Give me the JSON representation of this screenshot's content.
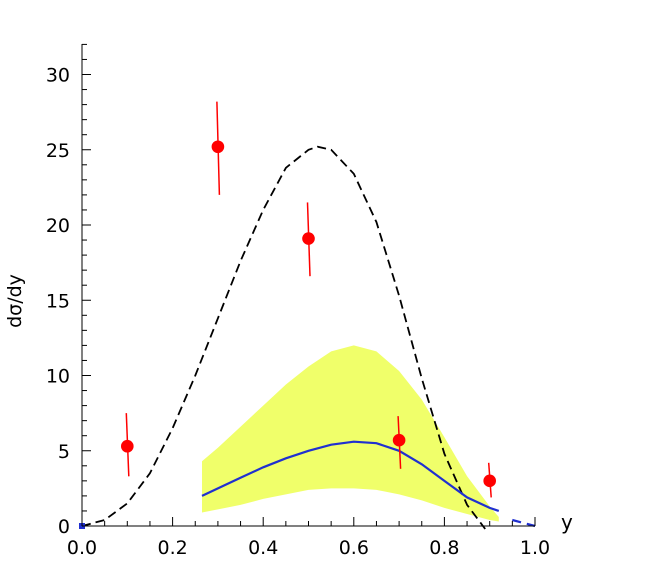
{
  "chart_data": {
    "type": "line",
    "xlabel": "y",
    "ylabel": "dσ/dy",
    "xlim": [
      0.0,
      1.0
    ],
    "ylim": [
      0,
      32
    ],
    "grid": false,
    "x_ticks": [
      "0.0",
      "0.2",
      "0.4",
      "0.6",
      "0.8",
      "1.0"
    ],
    "y_ticks": [
      "0",
      "5",
      "10",
      "15",
      "20",
      "25",
      "30"
    ],
    "points": {
      "color": "#ff0000",
      "x": [
        0.1,
        0.3,
        0.5,
        0.7,
        0.9
      ],
      "y": [
        5.3,
        25.2,
        19.1,
        5.7,
        3.0
      ],
      "err_low": [
        3.3,
        22.0,
        16.6,
        3.8,
        1.9
      ],
      "err_high": [
        7.5,
        28.2,
        21.5,
        7.3,
        4.2
      ]
    },
    "dashed_curve": {
      "color": "#000000",
      "x": [
        0.0,
        0.05,
        0.1,
        0.15,
        0.2,
        0.25,
        0.3,
        0.35,
        0.4,
        0.45,
        0.5,
        0.52,
        0.55,
        0.6,
        0.65,
        0.7,
        0.75,
        0.8,
        0.85,
        0.89
      ],
      "y": [
        0.0,
        0.4,
        1.5,
        3.5,
        6.5,
        10.0,
        13.8,
        17.6,
        21.0,
        23.8,
        25.0,
        25.2,
        25.0,
        23.4,
        20.2,
        15.3,
        9.8,
        4.8,
        1.4,
        -0.2
      ]
    },
    "band": {
      "color": "#f0ff6a",
      "x": [
        0.265,
        0.3,
        0.35,
        0.4,
        0.45,
        0.5,
        0.55,
        0.6,
        0.65,
        0.7,
        0.75,
        0.8,
        0.85,
        0.9,
        0.92
      ],
      "upper": [
        4.3,
        5.2,
        6.6,
        8.0,
        9.4,
        10.6,
        11.6,
        12.0,
        11.6,
        10.3,
        8.4,
        5.9,
        3.3,
        1.3,
        0.6
      ],
      "lower": [
        0.9,
        1.1,
        1.4,
        1.8,
        2.1,
        2.4,
        2.5,
        2.5,
        2.4,
        2.1,
        1.7,
        1.2,
        0.8,
        0.4,
        0.3
      ]
    },
    "solid_curve": {
      "color": "#2030d0",
      "x": [
        0.265,
        0.3,
        0.35,
        0.4,
        0.45,
        0.5,
        0.55,
        0.6,
        0.65,
        0.7,
        0.75,
        0.8,
        0.85,
        0.9,
        0.92
      ],
      "y": [
        2.0,
        2.5,
        3.2,
        3.9,
        4.5,
        5.0,
        5.4,
        5.6,
        5.5,
        5.0,
        4.1,
        3.0,
        1.9,
        1.2,
        1.0
      ]
    },
    "blue_dashed_tail": {
      "color": "#2030d0",
      "x": [
        0.95,
        1.0
      ],
      "y": [
        0.4,
        0.0
      ]
    },
    "origin_marker": {
      "color": "#2030d0",
      "x": 0.0,
      "y": 0.0
    }
  }
}
